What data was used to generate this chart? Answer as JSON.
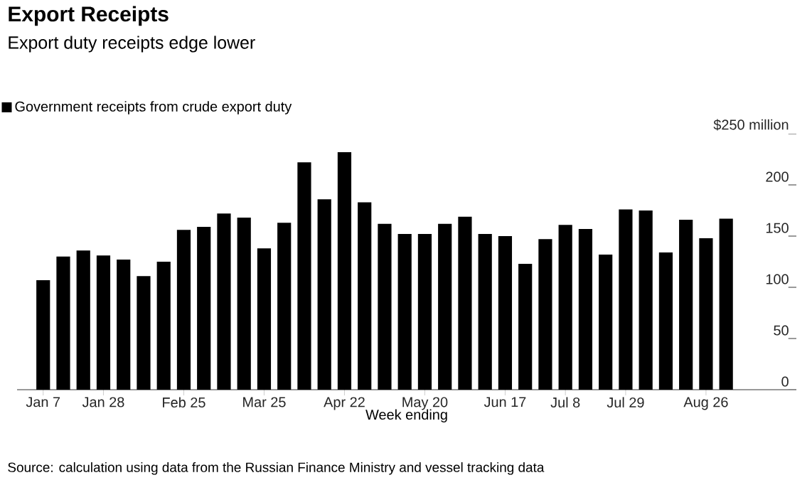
{
  "chart_data": {
    "type": "bar",
    "title": "Export Receipts",
    "subtitle": "Export duty receipts edge lower",
    "xlabel": "Week ending",
    "categories": [
      "Jan 7",
      null,
      null,
      "Jan 28",
      null,
      null,
      null,
      "Feb 25",
      null,
      null,
      null,
      "Mar 25",
      null,
      null,
      null,
      "Apr 22",
      null,
      null,
      null,
      "May 20",
      null,
      null,
      null,
      "Jun 17",
      null,
      null,
      "Jul 8",
      null,
      null,
      "Jul 29",
      null,
      null,
      null,
      "Aug 26",
      null
    ],
    "series": [
      {
        "name": "Government receipts from crude export duty",
        "color": "#000000",
        "values": [
          107,
          130,
          136,
          131,
          127,
          111,
          125,
          156,
          159,
          172,
          168,
          138,
          163,
          222,
          186,
          232,
          183,
          162,
          152,
          152,
          162,
          169,
          152,
          150,
          123,
          147,
          161,
          157,
          132,
          176,
          175,
          134,
          166,
          148,
          167
        ]
      }
    ],
    "ylim": [
      0,
      250
    ],
    "yticks": [
      0,
      50,
      100,
      150,
      200,
      {
        "value": 250,
        "label": "$250 million"
      }
    ],
    "legend": "top left",
    "annotations": [
      "Source: calculation using data from the Russian Finance Ministry and vessel tracking data"
    ]
  }
}
